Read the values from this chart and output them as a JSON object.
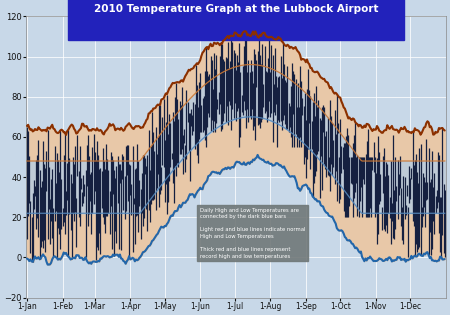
{
  "title": "2010 Temperature Graph at the Lubbock Airport",
  "title_bg": "#2222bb",
  "title_color": "white",
  "ylim": [
    -20,
    120
  ],
  "yticks": [
    -20,
    0,
    20,
    40,
    60,
    80,
    100,
    120
  ],
  "xlabel_color": "#111111",
  "bg_color": "#c8d8e8",
  "plot_bg": "#c8d8e8",
  "grid_color": "white",
  "bar_color": "#152040",
  "record_high_color": "#8B3000",
  "record_low_color": "#2266aa",
  "normal_high_color": "#cc7733",
  "normal_low_color": "#5588bb",
  "record_fill_color": "#e8c8a8",
  "normal_fill_color": "#b8cce0",
  "month_labels": [
    "1-Jan",
    "1-Feb",
    "1-Mar",
    "1-Apr",
    "1-May",
    "1-Jun",
    "1-Jul",
    "1-Aug",
    "1-Sep",
    "1-Oct",
    "1-Nov",
    "1-Dec"
  ],
  "legend_bg": "#707878",
  "legend_text_color": "white"
}
